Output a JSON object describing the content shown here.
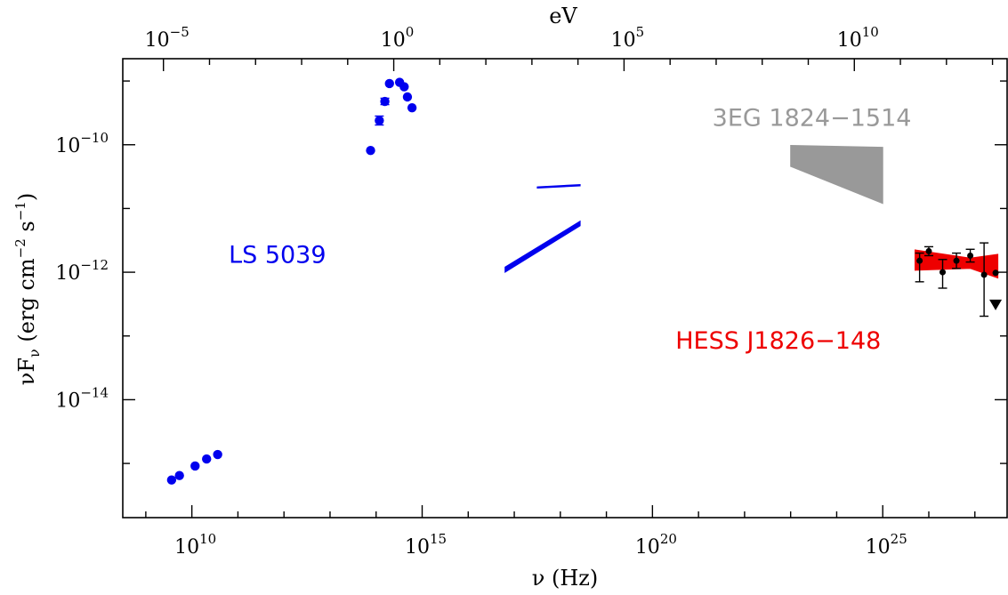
{
  "chart_data": {
    "type": "scatter",
    "scale": {
      "x": "log",
      "y": "log"
    },
    "xlabel": "ν (Hz)",
    "ylabel_main": "νF",
    "ylabel_sub": "ν",
    "ylabel_units_open": "(erg cm",
    "ylabel_exp1": "−2",
    "ylabel_mid": " s",
    "ylabel_exp2": "−1",
    "ylabel_close": ")",
    "top_axis_label": "eV",
    "xlim_log10": [
      8.5,
      27.7
    ],
    "ylim_log10": [
      -15.85,
      -8.65
    ],
    "x_ticks": [
      {
        "base": "10",
        "exp": "10",
        "log": 10
      },
      {
        "base": "10",
        "exp": "15",
        "log": 15
      },
      {
        "base": "10",
        "exp": "20",
        "log": 20
      },
      {
        "base": "10",
        "exp": "25",
        "log": 25
      }
    ],
    "top_ticks": [
      {
        "base": "10",
        "exp": "−5",
        "log_ev": -5
      },
      {
        "base": "10",
        "exp": "0",
        "log_ev": 0
      },
      {
        "base": "10",
        "exp": "5",
        "log_ev": 5
      },
      {
        "base": "10",
        "exp": "10",
        "log_ev": 10
      }
    ],
    "y_ticks": [
      {
        "base": "10",
        "exp": "−10",
        "log": -10
      },
      {
        "base": "10",
        "exp": "−12",
        "log": -12
      },
      {
        "base": "10",
        "exp": "−14",
        "log": -14
      }
    ],
    "annotations": [
      {
        "text": "LS 5039",
        "color": "#0000ee",
        "at_log": [
          10.8,
          -11.85
        ]
      },
      {
        "text": "3EG 1824−1514",
        "color": "#999999",
        "at_log": [
          21.3,
          -9.7
        ]
      },
      {
        "text": "HESS J1826−148",
        "color": "#ee0000",
        "at_log": [
          20.5,
          -13.2
        ]
      }
    ],
    "series": [
      {
        "color": "#0000ee",
        "kind": "points",
        "points": [
          {
            "x": 9.56,
            "y": -15.26
          },
          {
            "x": 9.73,
            "y": -15.19
          },
          {
            "x": 10.07,
            "y": -15.04
          },
          {
            "x": 10.32,
            "y": -14.93
          },
          {
            "x": 10.56,
            "y": -14.86
          },
          {
            "x": 13.88,
            "y": -10.09
          },
          {
            "x": 14.07,
            "y": -9.62,
            "yerr_lo": 0.07,
            "yerr_hi": 0.07
          },
          {
            "x": 14.19,
            "y": -9.32,
            "yerr_lo": 0.05,
            "yerr_hi": 0.05
          },
          {
            "x": 14.29,
            "y": -9.04
          },
          {
            "x": 14.51,
            "y": -9.02
          },
          {
            "x": 14.61,
            "y": -9.09
          },
          {
            "x": 14.68,
            "y": -9.25
          },
          {
            "x": 14.78,
            "y": -9.42
          }
        ]
      },
      {
        "color": "#0000ee",
        "kind": "band",
        "polygon": [
          [
            16.8,
            -12.0
          ],
          [
            18.43,
            -11.27
          ],
          [
            18.43,
            -11.2
          ],
          [
            16.8,
            -11.92
          ]
        ]
      },
      {
        "color": "#0000ee",
        "kind": "band",
        "polygon": [
          [
            17.5,
            -10.68
          ],
          [
            18.43,
            -10.645
          ],
          [
            18.43,
            -10.625
          ],
          [
            17.5,
            -10.66
          ]
        ]
      },
      {
        "color": "#999999",
        "kind": "band",
        "polygon": [
          [
            23.0,
            -10.01
          ],
          [
            25.0,
            -10.04
          ],
          [
            25.0,
            -10.92
          ],
          [
            23.0,
            -10.34
          ]
        ]
      },
      {
        "color": "#ee0000",
        "kind": "band",
        "polygon": [
          [
            25.7,
            -11.65
          ],
          [
            26.9,
            -11.78
          ],
          [
            27.5,
            -11.72
          ],
          [
            27.5,
            -12.09
          ],
          [
            26.9,
            -11.94
          ],
          [
            25.7,
            -11.97
          ]
        ]
      },
      {
        "color": "#000000",
        "kind": "points",
        "points": [
          {
            "x": 25.8,
            "y": -11.82,
            "yerr_lo": 0.33,
            "yerr_hi": 0.12
          },
          {
            "x": 26.0,
            "y": -11.67,
            "yerr_lo": 0.07,
            "yerr_hi": 0.07
          },
          {
            "x": 26.3,
            "y": -12.0,
            "yerr_lo": 0.25,
            "yerr_hi": 0.2
          },
          {
            "x": 26.6,
            "y": -11.82,
            "yerr_lo": 0.12,
            "yerr_hi": 0.12
          },
          {
            "x": 26.9,
            "y": -11.74,
            "yerr_lo": 0.1,
            "yerr_hi": 0.1
          },
          {
            "x": 27.2,
            "y": -12.04,
            "yerr_lo": 0.65,
            "yerr_hi": 0.5
          },
          {
            "x": 27.45,
            "y": -12.01
          }
        ]
      }
    ],
    "upper_limits": [
      {
        "x": 27.45,
        "y": -12.5,
        "color": "#000000"
      }
    ]
  }
}
